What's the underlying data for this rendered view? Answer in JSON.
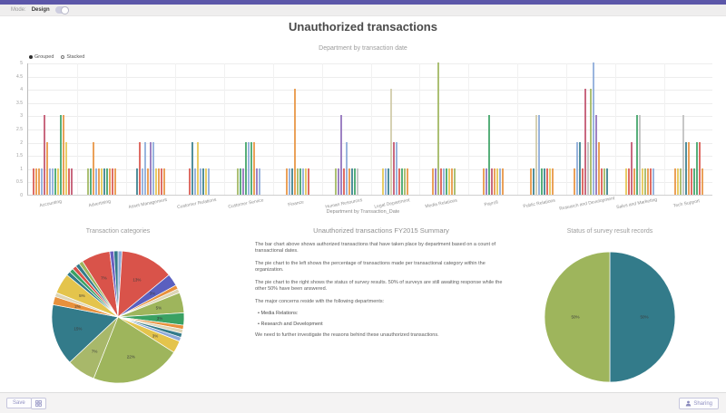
{
  "topbar": {
    "mode_label": "Mode:",
    "design_label": "Design",
    "toggle_on": true
  },
  "header": {
    "title": "Unauthorized transactions"
  },
  "accent_colors": {
    "topbar_purple": "#5c57a9",
    "button_lavender": "#9191c2"
  },
  "chart_data": [
    {
      "type": "bar",
      "title": "Department by transaction date",
      "xlabel": "Department by Transaction_Date",
      "ylabel": "",
      "ylim": [
        0,
        5
      ],
      "ytick_step": 0.5,
      "grid": true,
      "legend": [
        {
          "label": "Grouped",
          "selected": true
        },
        {
          "label": "Stacked",
          "selected": false
        }
      ],
      "palette": [
        "#88a8d8",
        "#e8913c",
        "#3aa163",
        "#d9534a",
        "#8d6cb8",
        "#337b8a",
        "#e4c44c",
        "#9eb55c",
        "#c04f6a",
        "#cfc9a6",
        "#bdbdbd"
      ],
      "categories": [
        "Accounting",
        "Advertising",
        "Asset Management",
        "Customer Relations",
        "Customer Service",
        "Finance",
        "Human Resources",
        "Legal Department",
        "Media Relations",
        "Payroll",
        "Public Relations",
        "Research and Development",
        "Sales and Marketing",
        "Tech Support"
      ],
      "groups": [
        [
          [
            1,
            3
          ],
          [
            1,
            1
          ],
          [
            1,
            1
          ],
          [
            1,
            0
          ],
          [
            3,
            8
          ],
          [
            2,
            1
          ],
          [
            1,
            0
          ],
          [
            1,
            0
          ],
          [
            1,
            2
          ],
          [
            1,
            6
          ],
          [
            3,
            2
          ],
          [
            3,
            1
          ],
          [
            2,
            6
          ],
          [
            1,
            3
          ],
          [
            1,
            8
          ]
        ],
        [
          [
            1,
            7
          ],
          [
            1,
            2
          ],
          [
            2,
            1
          ],
          [
            1,
            0
          ],
          [
            1,
            1
          ],
          [
            1,
            6
          ],
          [
            1,
            5
          ],
          [
            1,
            2
          ],
          [
            1,
            1
          ],
          [
            1,
            3
          ],
          [
            1,
            1
          ]
        ],
        [
          [
            1,
            5
          ],
          [
            2,
            3
          ],
          [
            1,
            0
          ],
          [
            2,
            0
          ],
          [
            1,
            1
          ],
          [
            2,
            4
          ],
          [
            2,
            0
          ],
          [
            1,
            6
          ],
          [
            1,
            1
          ],
          [
            1,
            3
          ],
          [
            1,
            1
          ]
        ],
        [
          [
            1,
            3
          ],
          [
            2,
            5
          ],
          [
            1,
            0
          ],
          [
            2,
            6
          ],
          [
            1,
            0
          ],
          [
            1,
            5
          ],
          [
            1,
            6
          ],
          [
            1,
            0
          ]
        ],
        [
          [
            1,
            7
          ],
          [
            1,
            2
          ],
          [
            1,
            4
          ],
          [
            2,
            2
          ],
          [
            2,
            0
          ],
          [
            2,
            2
          ],
          [
            2,
            1
          ],
          [
            1,
            4
          ],
          [
            1,
            0
          ]
        ],
        [
          [
            1,
            1
          ],
          [
            1,
            0
          ],
          [
            1,
            5
          ],
          [
            4,
            1
          ],
          [
            1,
            7
          ],
          [
            1,
            2
          ],
          [
            1,
            0
          ],
          [
            1,
            6
          ],
          [
            1,
            3
          ]
        ],
        [
          [
            1,
            7
          ],
          [
            1,
            4
          ],
          [
            3,
            4
          ],
          [
            1,
            3
          ],
          [
            2,
            0
          ],
          [
            1,
            1
          ],
          [
            1,
            5
          ],
          [
            1,
            2
          ],
          [
            1,
            10
          ]
        ],
        [
          [
            1,
            6
          ],
          [
            1,
            0
          ],
          [
            1,
            5
          ],
          [
            4,
            9
          ],
          [
            2,
            8
          ],
          [
            2,
            0
          ],
          [
            1,
            3
          ],
          [
            1,
            2
          ],
          [
            1,
            7
          ],
          [
            1,
            1
          ]
        ],
        [
          [
            1,
            1
          ],
          [
            1,
            4
          ],
          [
            5,
            7
          ],
          [
            1,
            3
          ],
          [
            1,
            0
          ],
          [
            1,
            2
          ],
          [
            1,
            6
          ],
          [
            1,
            1
          ],
          [
            1,
            7
          ]
        ],
        [
          [
            1,
            1
          ],
          [
            1,
            4
          ],
          [
            3,
            2
          ],
          [
            1,
            8
          ],
          [
            1,
            1
          ],
          [
            1,
            6
          ],
          [
            1,
            0
          ],
          [
            1,
            1
          ]
        ],
        [
          [
            1,
            1
          ],
          [
            1,
            5
          ],
          [
            3,
            9
          ],
          [
            3,
            0
          ],
          [
            1,
            2
          ],
          [
            1,
            5
          ],
          [
            1,
            3
          ],
          [
            1,
            6
          ],
          [
            1,
            1
          ]
        ],
        [
          [
            1,
            1
          ],
          [
            2,
            0
          ],
          [
            2,
            5
          ],
          [
            1,
            3
          ],
          [
            4,
            8
          ],
          [
            2,
            10
          ],
          [
            4,
            7
          ],
          [
            5,
            0
          ],
          [
            3,
            4
          ],
          [
            2,
            1
          ],
          [
            1,
            3
          ],
          [
            1,
            7
          ],
          [
            1,
            5
          ]
        ],
        [
          [
            1,
            6
          ],
          [
            1,
            3
          ],
          [
            2,
            8
          ],
          [
            1,
            1
          ],
          [
            3,
            2
          ],
          [
            3,
            10
          ],
          [
            1,
            6
          ],
          [
            1,
            7
          ],
          [
            1,
            1
          ],
          [
            1,
            3
          ],
          [
            1,
            0
          ]
        ],
        [
          [
            1,
            1
          ],
          [
            1,
            6
          ],
          [
            1,
            7
          ],
          [
            3,
            10
          ],
          [
            2,
            5
          ],
          [
            2,
            1
          ],
          [
            1,
            3
          ],
          [
            1,
            2
          ],
          [
            2,
            2
          ],
          [
            2,
            3
          ],
          [
            1,
            1
          ]
        ]
      ]
    },
    {
      "type": "pie",
      "title": "Transaction categories",
      "slices": [
        {
          "value": 1,
          "color": "#8ea9d8",
          "label": ""
        },
        {
          "value": 13,
          "color": "#d9534a",
          "label": "13%"
        },
        {
          "value": 3,
          "color": "#5a5fbf",
          "label": "3%"
        },
        {
          "value": 1,
          "color": "#e8913c",
          "label": ""
        },
        {
          "value": 1,
          "color": "#ddd5b6",
          "label": ""
        },
        {
          "value": 5,
          "color": "#9eb55c",
          "label": "5%"
        },
        {
          "value": 3,
          "color": "#3aa163",
          "label": "3%"
        },
        {
          "value": 1,
          "color": "#e8913c",
          "label": ""
        },
        {
          "value": 1,
          "color": "#ddd5b6",
          "label": ""
        },
        {
          "value": 1,
          "color": "#337b8a",
          "label": ""
        },
        {
          "value": 1,
          "color": "#8ea9d8",
          "label": ""
        },
        {
          "value": 3,
          "color": "#e4c44c",
          "label": "3%"
        },
        {
          "value": 22,
          "color": "#9eb55c",
          "label": "22%"
        },
        {
          "value": 7,
          "color": "#a8b86a",
          "label": "7%"
        },
        {
          "value": 15,
          "color": "#337b8a",
          "label": "15%"
        },
        {
          "value": 2,
          "color": "#e8913c",
          "label": "2%"
        },
        {
          "value": 1,
          "color": "#ddd5b6",
          "label": ""
        },
        {
          "value": 5,
          "color": "#e4c44c",
          "label": "5%"
        },
        {
          "value": 1,
          "color": "#337b8a",
          "label": ""
        },
        {
          "value": 1,
          "color": "#3aa163",
          "label": ""
        },
        {
          "value": 1,
          "color": "#d9534a",
          "label": ""
        },
        {
          "value": 1,
          "color": "#337b8a",
          "label": ""
        },
        {
          "value": 1,
          "color": "#9eb55c",
          "label": ""
        },
        {
          "value": 7,
          "color": "#d9534a",
          "label": "7%"
        },
        {
          "value": 1,
          "color": "#6a5fc0",
          "label": ""
        },
        {
          "value": 1,
          "color": "#337b8a",
          "label": ""
        }
      ]
    },
    {
      "type": "pie",
      "title": "Status of survey result records",
      "slices": [
        {
          "value": 50,
          "color": "#337b8a",
          "label": "50%"
        },
        {
          "value": 50,
          "color": "#9eb55c",
          "label": "50%"
        }
      ]
    }
  ],
  "summary": {
    "title": "Unauthorized transactions FY2015 Summary",
    "paragraphs": [
      "The bar chart above shows authorized transactions that have taken place by department based on a count of transactional dates.",
      "The pie chart to the left shows the percentage of transactions made per transactional category within the organization.",
      "The pie chart to the right shows the status of survey results. 50% of surveys are still awaiting response while the other 50% have been answered.",
      "The major concerns reside with the following departments:",
      "We need to further investigate the reasons behind these unauthorized transactions."
    ],
    "bullets": [
      "Media Relations:",
      "Research and Development"
    ]
  },
  "footer": {
    "save_label": "Save",
    "sharing_label": "Sharing",
    "icons": {
      "widgets": "grid-icon",
      "sharing": "person-icon"
    }
  }
}
